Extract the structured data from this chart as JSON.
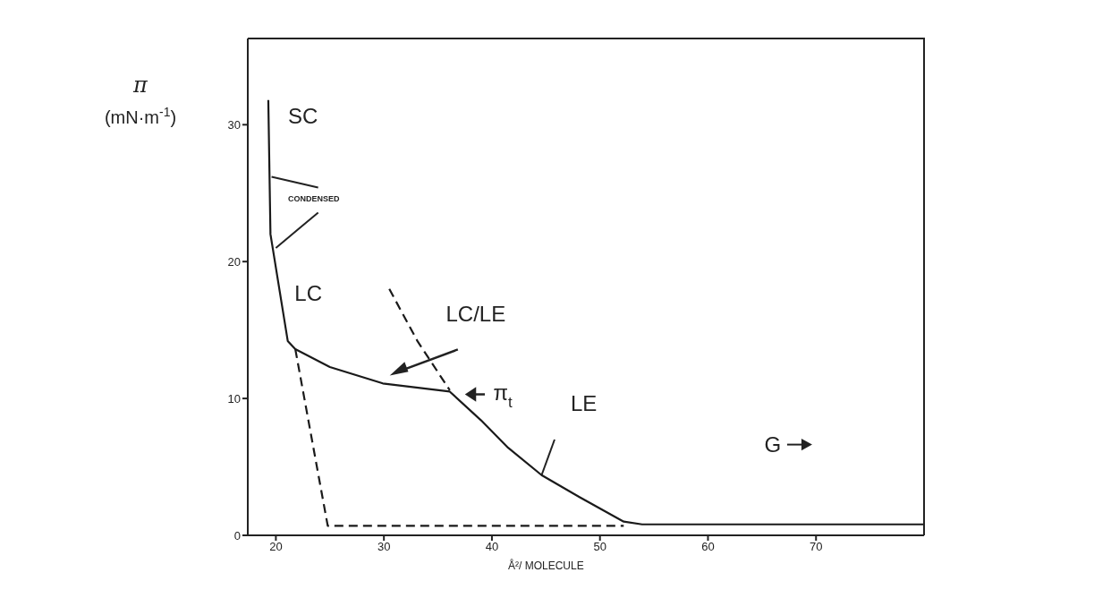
{
  "chart_data": {
    "type": "line",
    "xlabel": "Å²/ MOLECULE",
    "ylabel": "π (mN·m$^{-1}$)",
    "xlim": [
      17.4,
      80
    ],
    "xticks": [
      20,
      30,
      40,
      50,
      60,
      70
    ],
    "ylim": [
      0,
      36.3
    ],
    "yticks": [
      0,
      10,
      20,
      30
    ],
    "marker": "none",
    "series": [
      {
        "color": "#1a1a1a",
        "line_style": "solid",
        "x": [
          19.3,
          19.5,
          21.1,
          21.8,
          25.0,
          29.9,
          36.1,
          39.0,
          41.5,
          44.6,
          48.1,
          52.2,
          53.9,
          80
        ],
        "values": [
          31.8,
          22,
          14.2,
          13.6,
          12.3,
          11.1,
          10.5,
          8.4,
          6.4,
          4.4,
          2.8,
          1.0,
          0.8,
          0.8
        ]
      },
      {
        "color": "#1a1a1a",
        "line_style": "dashed",
        "x": [
          21.8,
          24.8,
          52.2
        ],
        "values": [
          13.6,
          0.7,
          0.7
        ]
      },
      {
        "color": "#1a1a1a",
        "line_style": "dashed",
        "x": [
          30.5,
          33.1,
          36.1
        ],
        "values": [
          18.0,
          14.2,
          10.6
        ]
      }
    ],
    "annotations": [
      "SC",
      {
        "text": "CONDENSED",
        "x": 19.6,
        "y": 26.2
      },
      "LC",
      "LC/LE",
      "π$_{t}$",
      "LE",
      "G"
    ]
  }
}
